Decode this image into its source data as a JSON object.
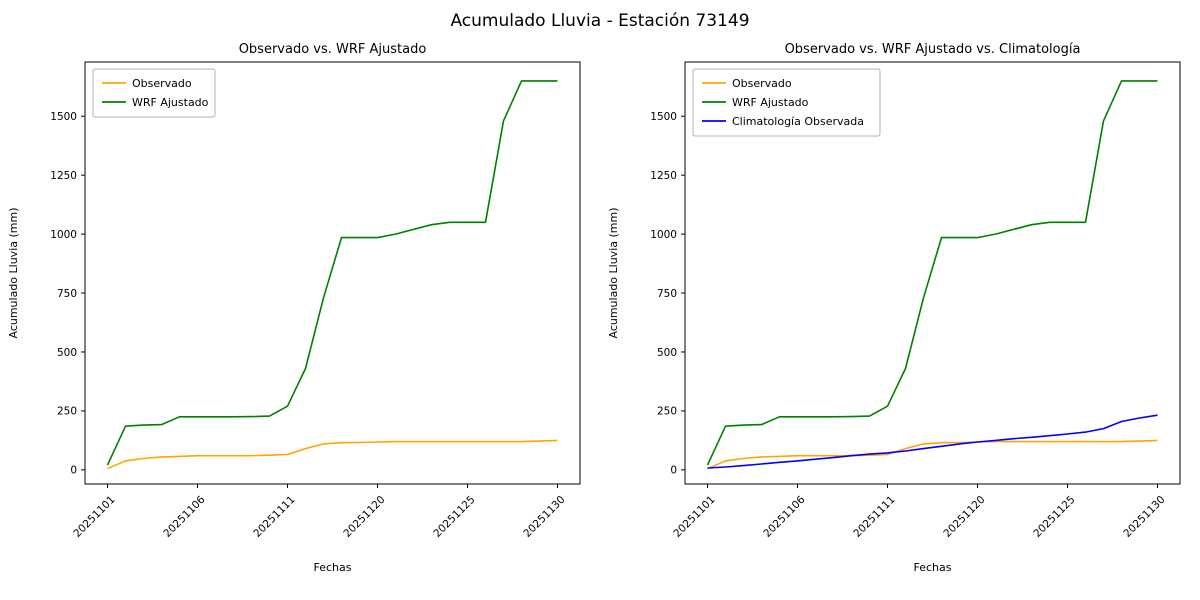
{
  "figure": {
    "suptitle": "Acumulado Lluvia - Estación 73149",
    "background": "#ffffff"
  },
  "chart_data": [
    {
      "type": "line",
      "title": "Observado vs. WRF Ajustado",
      "xlabel": "Fechas",
      "ylabel": "Acumulado Lluvia (mm)",
      "x": [
        "20251101",
        "20251102",
        "20251103",
        "20251104",
        "20251105",
        "20251106",
        "20251107",
        "20251108",
        "20251109",
        "20251110",
        "20251111",
        "20251112",
        "20251114",
        "20251116",
        "20251118",
        "20251120",
        "20251121",
        "20251122",
        "20251123",
        "20251124",
        "20251125",
        "20251126",
        "20251127",
        "20251128",
        "20251129",
        "20251130"
      ],
      "xtick_indices": [
        0,
        5,
        10,
        15,
        20,
        25
      ],
      "xtick_labels": [
        "20251101",
        "20251106",
        "20251111",
        "20251120",
        "20251125",
        "20251130"
      ],
      "yticks": [
        0,
        250,
        500,
        750,
        1000,
        1250,
        1500
      ],
      "ylim": [
        -60,
        1730
      ],
      "grid": false,
      "legend_position": "upper left",
      "series": [
        {
          "name": "Observado",
          "color": "#FFA500",
          "values": [
            5,
            38,
            48,
            55,
            57,
            60,
            60,
            60,
            60,
            62,
            65,
            90,
            110,
            115,
            116,
            118,
            120,
            120,
            120,
            120,
            120,
            120,
            120,
            120,
            122,
            125
          ]
        },
        {
          "name": "WRF Ajustado",
          "color": "#008000",
          "values": [
            20,
            185,
            190,
            192,
            225,
            225,
            225,
            225,
            226,
            228,
            270,
            430,
            730,
            985,
            985,
            985,
            1000,
            1020,
            1040,
            1050,
            1050,
            1050,
            1480,
            1650,
            1650,
            1650
          ]
        }
      ]
    },
    {
      "type": "line",
      "title": "Observado vs. WRF Ajustado vs. Climatología",
      "xlabel": "Fechas",
      "ylabel": "Acumulado Lluvia (mm)",
      "x": [
        "20251101",
        "20251102",
        "20251103",
        "20251104",
        "20251105",
        "20251106",
        "20251107",
        "20251108",
        "20251109",
        "20251110",
        "20251111",
        "20251112",
        "20251114",
        "20251116",
        "20251118",
        "20251120",
        "20251121",
        "20251122",
        "20251123",
        "20251124",
        "20251125",
        "20251126",
        "20251127",
        "20251128",
        "20251129",
        "20251130"
      ],
      "xtick_indices": [
        0,
        5,
        10,
        15,
        20,
        25
      ],
      "xtick_labels": [
        "20251101",
        "20251106",
        "20251111",
        "20251120",
        "20251125",
        "20251130"
      ],
      "yticks": [
        0,
        250,
        500,
        750,
        1000,
        1250,
        1500
      ],
      "ylim": [
        -60,
        1730
      ],
      "grid": false,
      "legend_position": "upper left",
      "series": [
        {
          "name": "Observado",
          "color": "#FFA500",
          "values": [
            5,
            38,
            48,
            55,
            57,
            60,
            60,
            60,
            60,
            62,
            65,
            90,
            110,
            115,
            116,
            118,
            120,
            120,
            120,
            120,
            120,
            120,
            120,
            120,
            122,
            125
          ]
        },
        {
          "name": "WRF Ajustado",
          "color": "#008000",
          "values": [
            20,
            185,
            190,
            192,
            225,
            225,
            225,
            225,
            226,
            228,
            270,
            430,
            730,
            985,
            985,
            985,
            1000,
            1020,
            1040,
            1050,
            1050,
            1050,
            1480,
            1650,
            1650,
            1650
          ]
        },
        {
          "name": "Climatología Observada",
          "color": "#0000FF",
          "values": [
            8,
            12,
            18,
            25,
            32,
            38,
            45,
            52,
            60,
            67,
            72,
            80,
            90,
            100,
            110,
            118,
            125,
            132,
            138,
            145,
            152,
            160,
            175,
            205,
            220,
            232
          ]
        }
      ]
    }
  ]
}
